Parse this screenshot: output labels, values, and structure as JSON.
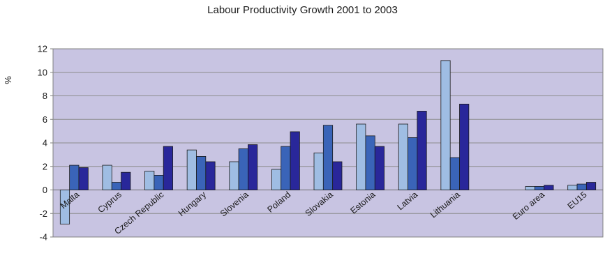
{
  "chart_data": {
    "type": "bar",
    "title": "Labour Productivity Growth 2001 to 2003",
    "ylabel": "%",
    "xlabel": "",
    "ylim": [
      -4,
      12
    ],
    "yticks": [
      -4,
      -2,
      0,
      2,
      4,
      6,
      8,
      10,
      12
    ],
    "grid": true,
    "legend": "none",
    "categories": [
      "Malta",
      "Cyprus",
      "Czech Republic",
      "Hungary",
      "Slovenia",
      "Poland",
      "Slovakia",
      "Estonia",
      "Latvia",
      "Lithuania",
      "",
      "Euro area",
      "EU15"
    ],
    "series": [
      {
        "color": "#9fbde3",
        "values": [
          -2.9,
          2.1,
          1.6,
          3.4,
          2.4,
          1.75,
          3.15,
          5.6,
          5.6,
          11.0,
          null,
          0.3,
          0.4
        ]
      },
      {
        "color": "#3a64b8",
        "values": [
          2.1,
          0.65,
          1.25,
          2.85,
          3.5,
          3.7,
          5.5,
          4.6,
          4.45,
          2.75,
          null,
          0.3,
          0.5
        ]
      },
      {
        "color": "#29279a",
        "values": [
          1.9,
          1.5,
          3.7,
          2.4,
          3.85,
          4.95,
          2.4,
          3.7,
          6.7,
          7.3,
          null,
          0.4,
          0.65
        ]
      }
    ]
  }
}
